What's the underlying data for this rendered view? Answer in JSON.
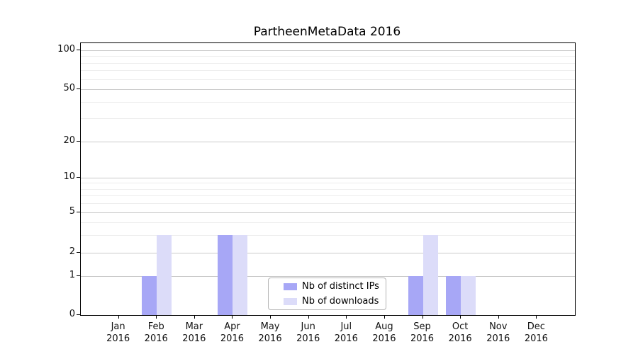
{
  "title": "PartheenMetaData 2016",
  "chart_data": {
    "type": "bar",
    "title": "PartheenMetaData 2016",
    "categories": [
      "Jan",
      "Feb",
      "Mar",
      "Apr",
      "May",
      "Jun",
      "Jul",
      "Aug",
      "Sep",
      "Oct",
      "Nov",
      "Dec"
    ],
    "year": "2016",
    "series": [
      {
        "name": "Nb of distinct IPs",
        "color": "#a7a7f6",
        "values": [
          0,
          1,
          0,
          3,
          0,
          0,
          0,
          0,
          1,
          1,
          0,
          0
        ]
      },
      {
        "name": "Nb of downloads",
        "color": "#dcdcf9",
        "values": [
          0,
          3,
          0,
          3,
          0,
          0,
          0,
          0,
          3,
          1,
          0,
          0
        ]
      }
    ],
    "xlabel": "",
    "ylabel": "",
    "yscale": "symlog",
    "yticks": [
      0,
      1,
      2,
      5,
      10,
      20,
      50,
      100
    ],
    "ylim": [
      0,
      113
    ],
    "grid": "horizontal major+minor",
    "legend_position": "lower center"
  }
}
